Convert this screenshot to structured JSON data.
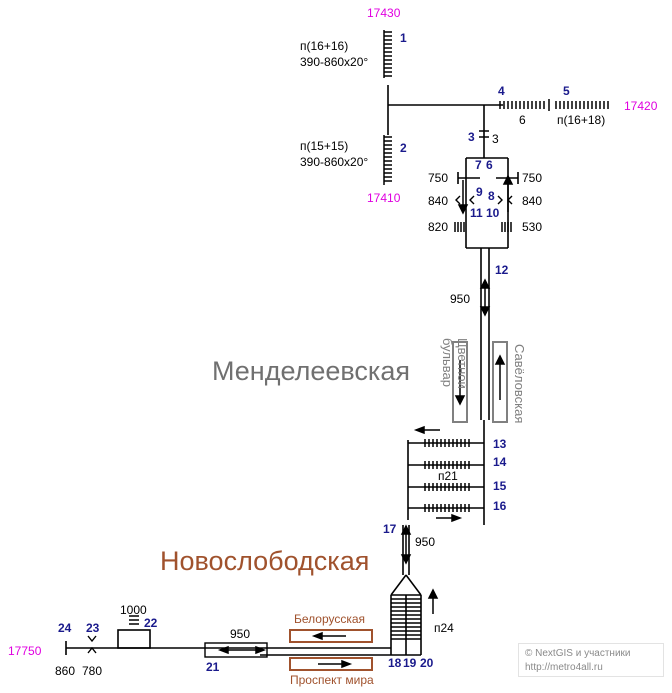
{
  "colors": {
    "track": "#000000",
    "switch_number": "#1a1a8c",
    "picket": "#e000e0",
    "station_mendeleevskaya": "#707070",
    "station_novoslobodskaya": "#a0522d",
    "platform_grey": "#808080",
    "platform_brown": "#a0522d"
  },
  "stations": {
    "mendeleevskaya": "Менделеевская",
    "novoslobodskaya": "Новослободская"
  },
  "platforms": {
    "tsvetnoy": "Цветной бульвар",
    "savelovskaya": "Савёловская",
    "belorusskaya": "Белорусская",
    "prospekt_mira": "Проспект мира"
  },
  "pickets": [
    "17430",
    "17410",
    "17420",
    "17750"
  ],
  "switch_numbers": [
    "1",
    "2",
    "3",
    "4",
    "5",
    "6",
    "7",
    "8",
    "9",
    "10",
    "11",
    "12",
    "13",
    "14",
    "15",
    "16",
    "17",
    "18",
    "19",
    "20",
    "21",
    "22",
    "23",
    "24"
  ],
  "labels": {
    "top_label_1": "п(16+16)",
    "top_label_2": "390-860x20°",
    "mid_label_1": "п(15+15)",
    "mid_label_2": "390-860x20°",
    "track_6": "6",
    "track_3": "3",
    "dead_end_5": "п(16+18)",
    "d750_left": "750",
    "d750_right": "750",
    "d840_left": "840",
    "d840_right": "840",
    "d820": "820",
    "d530": "530",
    "d950_top": "950",
    "p21": "п21",
    "d950_mid": "950",
    "p24": "п24",
    "d1000": "1000",
    "d950_bottom": "950",
    "d860": "860",
    "d780": "780"
  },
  "copyright": {
    "line1": "© NextGIS и участники",
    "line2": "http://metro4all.ru"
  }
}
